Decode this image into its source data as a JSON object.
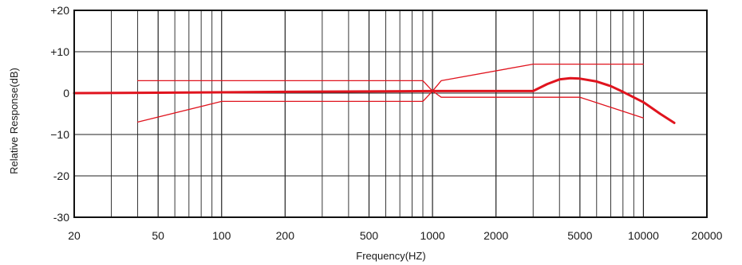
{
  "chart_data": {
    "type": "line",
    "xlabel": "Frequency(HZ)",
    "ylabel": "Relative Response(dB)",
    "x_scale": "log",
    "xlim": [
      20,
      20000
    ],
    "ylim": [
      -30,
      20
    ],
    "grid": true,
    "x_ticks": [
      {
        "value": 20,
        "label": "20"
      },
      {
        "value": 50,
        "label": "50"
      },
      {
        "value": 100,
        "label": "100"
      },
      {
        "value": 200,
        "label": "200"
      },
      {
        "value": 500,
        "label": "500"
      },
      {
        "value": 1000,
        "label": "1000"
      },
      {
        "value": 2000,
        "label": "2000"
      },
      {
        "value": 5000,
        "label": "5000"
      },
      {
        "value": 10000,
        "label": "10000"
      },
      {
        "value": 20000,
        "label": "20000"
      }
    ],
    "y_ticks": [
      {
        "value": 20,
        "label": "+20"
      },
      {
        "value": 10,
        "label": "+10"
      },
      {
        "value": 0,
        "label": "0"
      },
      {
        "value": -10,
        "label": "−10"
      },
      {
        "value": -20,
        "label": "-20"
      },
      {
        "value": -30,
        "label": "-30"
      }
    ],
    "x_minor_gridlines": [
      30,
      40,
      60,
      70,
      80,
      90,
      300,
      400,
      600,
      700,
      800,
      900,
      3000,
      4000,
      6000,
      7000,
      8000,
      9000
    ],
    "colors": {
      "response": "#e0141e",
      "tolerance": "#e0141e",
      "grid": "#222222",
      "frame": "#111111"
    },
    "series": [
      {
        "role": "response",
        "x": [
          20,
          50,
          100,
          200,
          500,
          1000,
          2000,
          3000,
          3500,
          4000,
          4500,
          5000,
          6000,
          7000,
          8000,
          10000,
          12000,
          14000
        ],
        "y": [
          0,
          0.1,
          0.2,
          0.3,
          0.4,
          0.5,
          0.5,
          0.5,
          2.2,
          3.3,
          3.6,
          3.5,
          2.8,
          1.7,
          0.3,
          -2.2,
          -5.0,
          -7.2
        ]
      },
      {
        "role": "tolerance-upper",
        "x": [
          40,
          900,
          1000,
          1100,
          3000,
          10000
        ],
        "y": [
          3,
          3,
          0.5,
          3,
          7,
          7
        ]
      },
      {
        "role": "tolerance-lower",
        "x": [
          40,
          100,
          900,
          1000,
          1100,
          5000,
          10000
        ],
        "y": [
          -7,
          -2,
          -2,
          0.5,
          -1,
          -1,
          -6
        ]
      }
    ]
  }
}
